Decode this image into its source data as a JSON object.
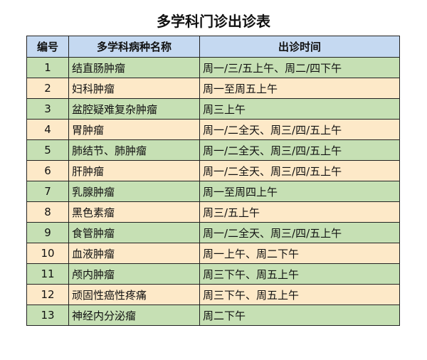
{
  "title": "多学科门诊出诊表",
  "table": {
    "header": [
      "编号",
      "多学科病种名称",
      "出诊时间"
    ],
    "rows": [
      [
        "1",
        "结直肠肿瘤",
        "周一/三/五上午、周二/四下午"
      ],
      [
        "2",
        "妇科肿瘤",
        "周一至周五上午"
      ],
      [
        "3",
        "盆腔疑难复杂肿瘤",
        "周三上午"
      ],
      [
        "4",
        "胃肿瘤",
        "周一/二全天、周三/四/五上午"
      ],
      [
        "5",
        "肺结节、肺肿瘤",
        "周一/二全天、周三/四/五上午"
      ],
      [
        "6",
        "肝肿瘤",
        "周一/二全天、周三/四/五上午"
      ],
      [
        "7",
        "乳腺肿瘤",
        "周一至周四上午"
      ],
      [
        "8",
        "黑色素瘤",
        "周三/五上午"
      ],
      [
        "9",
        "食管肿瘤",
        "周一/二全天、周三/四/五上午"
      ],
      [
        "10",
        "血液肿瘤",
        "周一上午、周二下午"
      ],
      [
        "11",
        "颅内肿瘤",
        "周三下午、周五上午"
      ],
      [
        "12",
        "顽固性癌性疼痛",
        "周三下午、周五上午"
      ],
      [
        "13",
        "神经内分泌瘤",
        "周二下午"
      ]
    ]
  }
}
